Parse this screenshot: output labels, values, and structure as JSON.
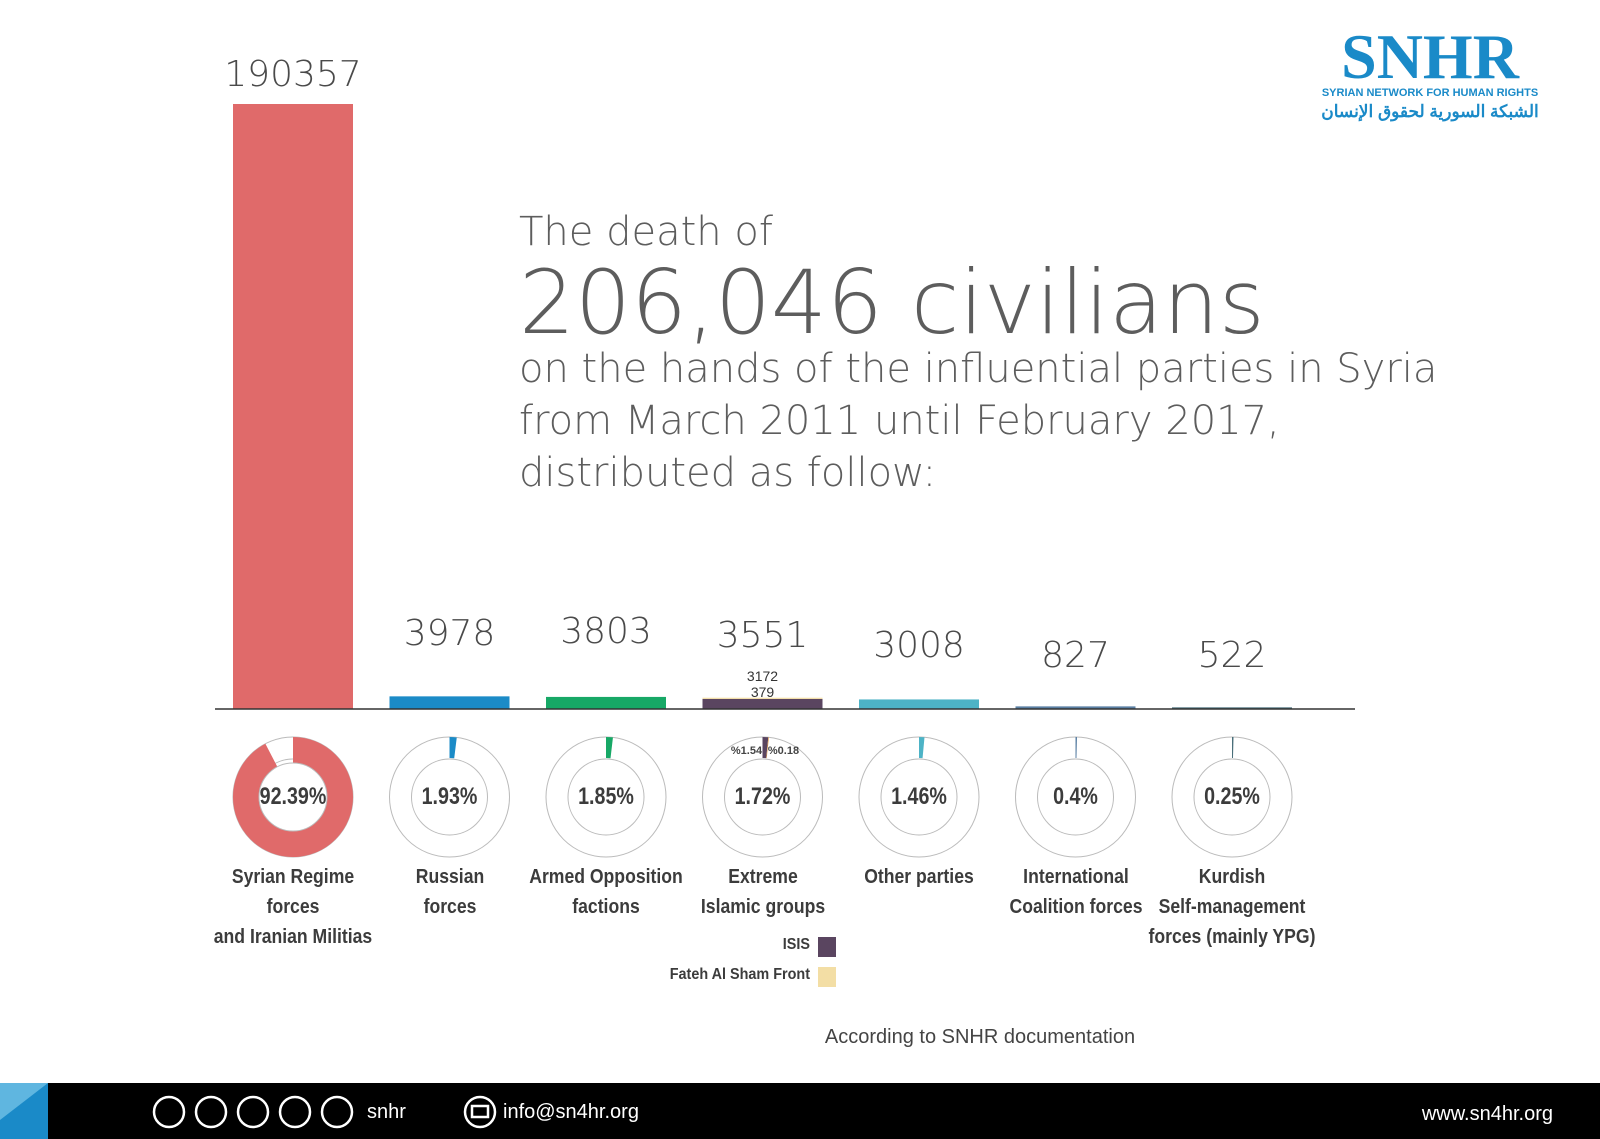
{
  "logo": {
    "name": "SNHR",
    "english": "SYRIAN NETWORK FOR HUMAN RIGHTS",
    "arabic": "الشبكة السورية لحقوق الإنسان"
  },
  "header": {
    "intro": "The death of",
    "headline": "206,046 civilians",
    "lines": [
      "on the hands of the influential parties in Syria",
      "from March 2011 until February 2017,",
      "distributed as follow:"
    ]
  },
  "chart_data": {
    "type": "bar",
    "categories": [
      "Syrian Regime forces\nand Iranian Militias",
      "Russian\nforces",
      "Armed Opposition\nfactions",
      "Extreme\nIslamic groups",
      "Other parties",
      "International\nCoalition forces",
      "Kurdish\nSelf-management\nforces (mainly YPG)"
    ],
    "values": [
      190357,
      3978,
      3803,
      3551,
      3008,
      827,
      522
    ],
    "colors": [
      "#e06a6a",
      "#1b8bc7",
      "#17a866",
      "#5a4a63",
      "#4db3c6",
      "#5a7fa3",
      "#4a6f7a"
    ],
    "percents": [
      92.39,
      1.93,
      1.85,
      1.72,
      1.46,
      0.4,
      0.25
    ],
    "percent_labels": [
      "92.39%",
      "1.93%",
      "1.85%",
      "1.72%",
      "1.46%",
      "0.4%",
      "0.25%"
    ],
    "segments": [
      null,
      null,
      null,
      [
        {
          "name": "ISIS",
          "color": "#5a4560",
          "value": 3172,
          "percent": 1.54,
          "percent_label": "%1.54"
        },
        {
          "name": "Fateh Al Sham Front",
          "color": "#f3dea5",
          "value": 379,
          "percent": 0.18,
          "percent_label": "%0.18"
        }
      ],
      null,
      null,
      null
    ]
  },
  "footer": {
    "note": "According to SNHR documentation",
    "social": "snhr",
    "email": "info@sn4hr.org",
    "website": "www.sn4hr.org"
  }
}
